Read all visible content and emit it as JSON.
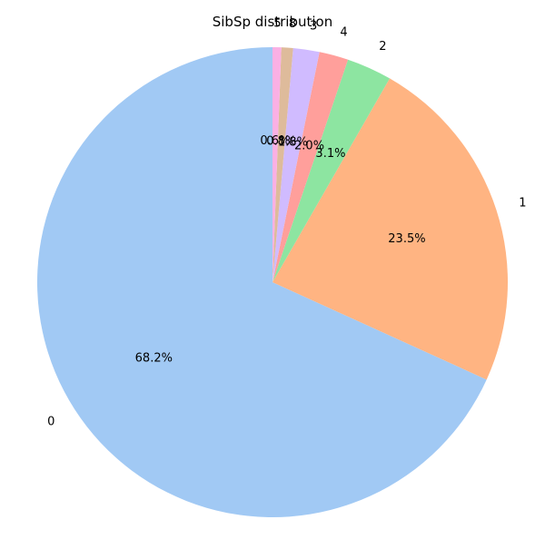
{
  "chart_data": {
    "type": "pie",
    "title": "SibSp distribution",
    "start_angle_deg": 90,
    "direction": "counterclockwise",
    "categories": [
      "0",
      "1",
      "2",
      "4",
      "3",
      "8",
      "5"
    ],
    "values": [
      68.2,
      23.5,
      3.1,
      2.0,
      1.8,
      0.8,
      0.6
    ],
    "pct_labels": [
      "68.2%",
      "23.5%",
      "3.1%",
      "2.0%",
      "1.8%",
      "0.8%",
      "0.6%"
    ],
    "colors": [
      "#a1c9f4",
      "#ffb482",
      "#8de5a1",
      "#ff9f9b",
      "#d0bbff",
      "#debb9b",
      "#fab0e4"
    ]
  }
}
